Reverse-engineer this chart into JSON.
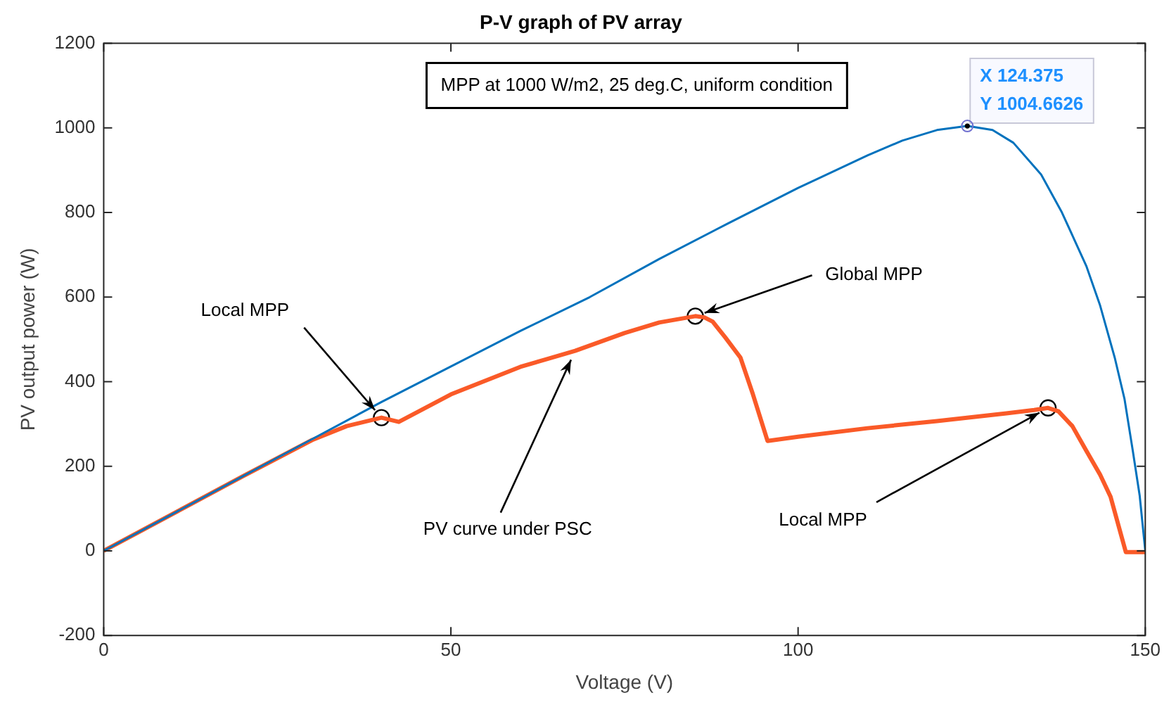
{
  "chart_data": {
    "type": "line",
    "title": "P-V graph of PV array",
    "xlabel": "Voltage (V)",
    "ylabel": "PV output power (W)",
    "xlim": [
      0,
      150
    ],
    "xticks": [
      0,
      50,
      100,
      150
    ],
    "ylim": [
      -200,
      1200
    ],
    "yticks": [
      -200,
      0,
      200,
      400,
      600,
      800,
      1000,
      1200
    ],
    "grid": false,
    "legend": false,
    "line_style": "solid",
    "series": [
      {
        "color": "#0072bd",
        "x": [
          0,
          10,
          20,
          30,
          40,
          50,
          60,
          70,
          80,
          90,
          100,
          110,
          115,
          120,
          124.375,
          128,
          131,
          135,
          138,
          141.5,
          143.5,
          145.6,
          147,
          148.2,
          149.2,
          150
        ],
        "values": [
          0,
          88,
          176,
          264,
          352,
          436,
          520,
          600,
          690,
          775,
          858,
          935,
          970,
          995,
          1004.6626,
          995,
          965,
          890,
          800,
          674,
          580,
          457,
          360,
          237,
          130,
          0
        ]
      },
      {
        "color": "#fa5a28",
        "x": [
          0,
          10,
          20,
          30,
          35,
          40,
          42.5,
          50,
          60,
          67.9,
          75,
          80,
          85.2,
          86.5,
          87.7,
          89.5,
          91.7,
          93.5,
          95.6,
          100,
          110,
          120,
          130,
          134,
          136,
          137.5,
          139.5,
          141.5,
          143.5,
          145,
          147.2,
          150
        ],
        "values": [
          0,
          88,
          176,
          262,
          295,
          315,
          305,
          370,
          435,
          473,
          515,
          540,
          555,
          552,
          542,
          505,
          457,
          370,
          260,
          270,
          290,
          307,
          325,
          333,
          338,
          330,
          295,
          237,
          180,
          128,
          -3,
          -3
        ]
      },
      {
        "type": "scatter",
        "marker": "circle",
        "color": "#000000",
        "x": [
          40,
          85.2,
          136
        ],
        "values": [
          315,
          555,
          338
        ]
      }
    ],
    "annotations": [
      "MPP at 1000 W/m2, 25 deg.C, uniform condition",
      {
        "text": "X 124.375",
        "x": 124.375,
        "y": 1004.6626
      },
      {
        "text": "Y 1004.6626",
        "x": 124.375,
        "y": 1004.6626
      },
      {
        "text": "Local MPP",
        "x": 40,
        "y": 315
      },
      {
        "text": "PV curve under PSC",
        "x": 67.9,
        "y": 473
      },
      {
        "text": "Global MPP",
        "x": 85.2,
        "y": 555
      },
      {
        "text": "Local MPP",
        "x": 136,
        "y": 338
      }
    ]
  }
}
